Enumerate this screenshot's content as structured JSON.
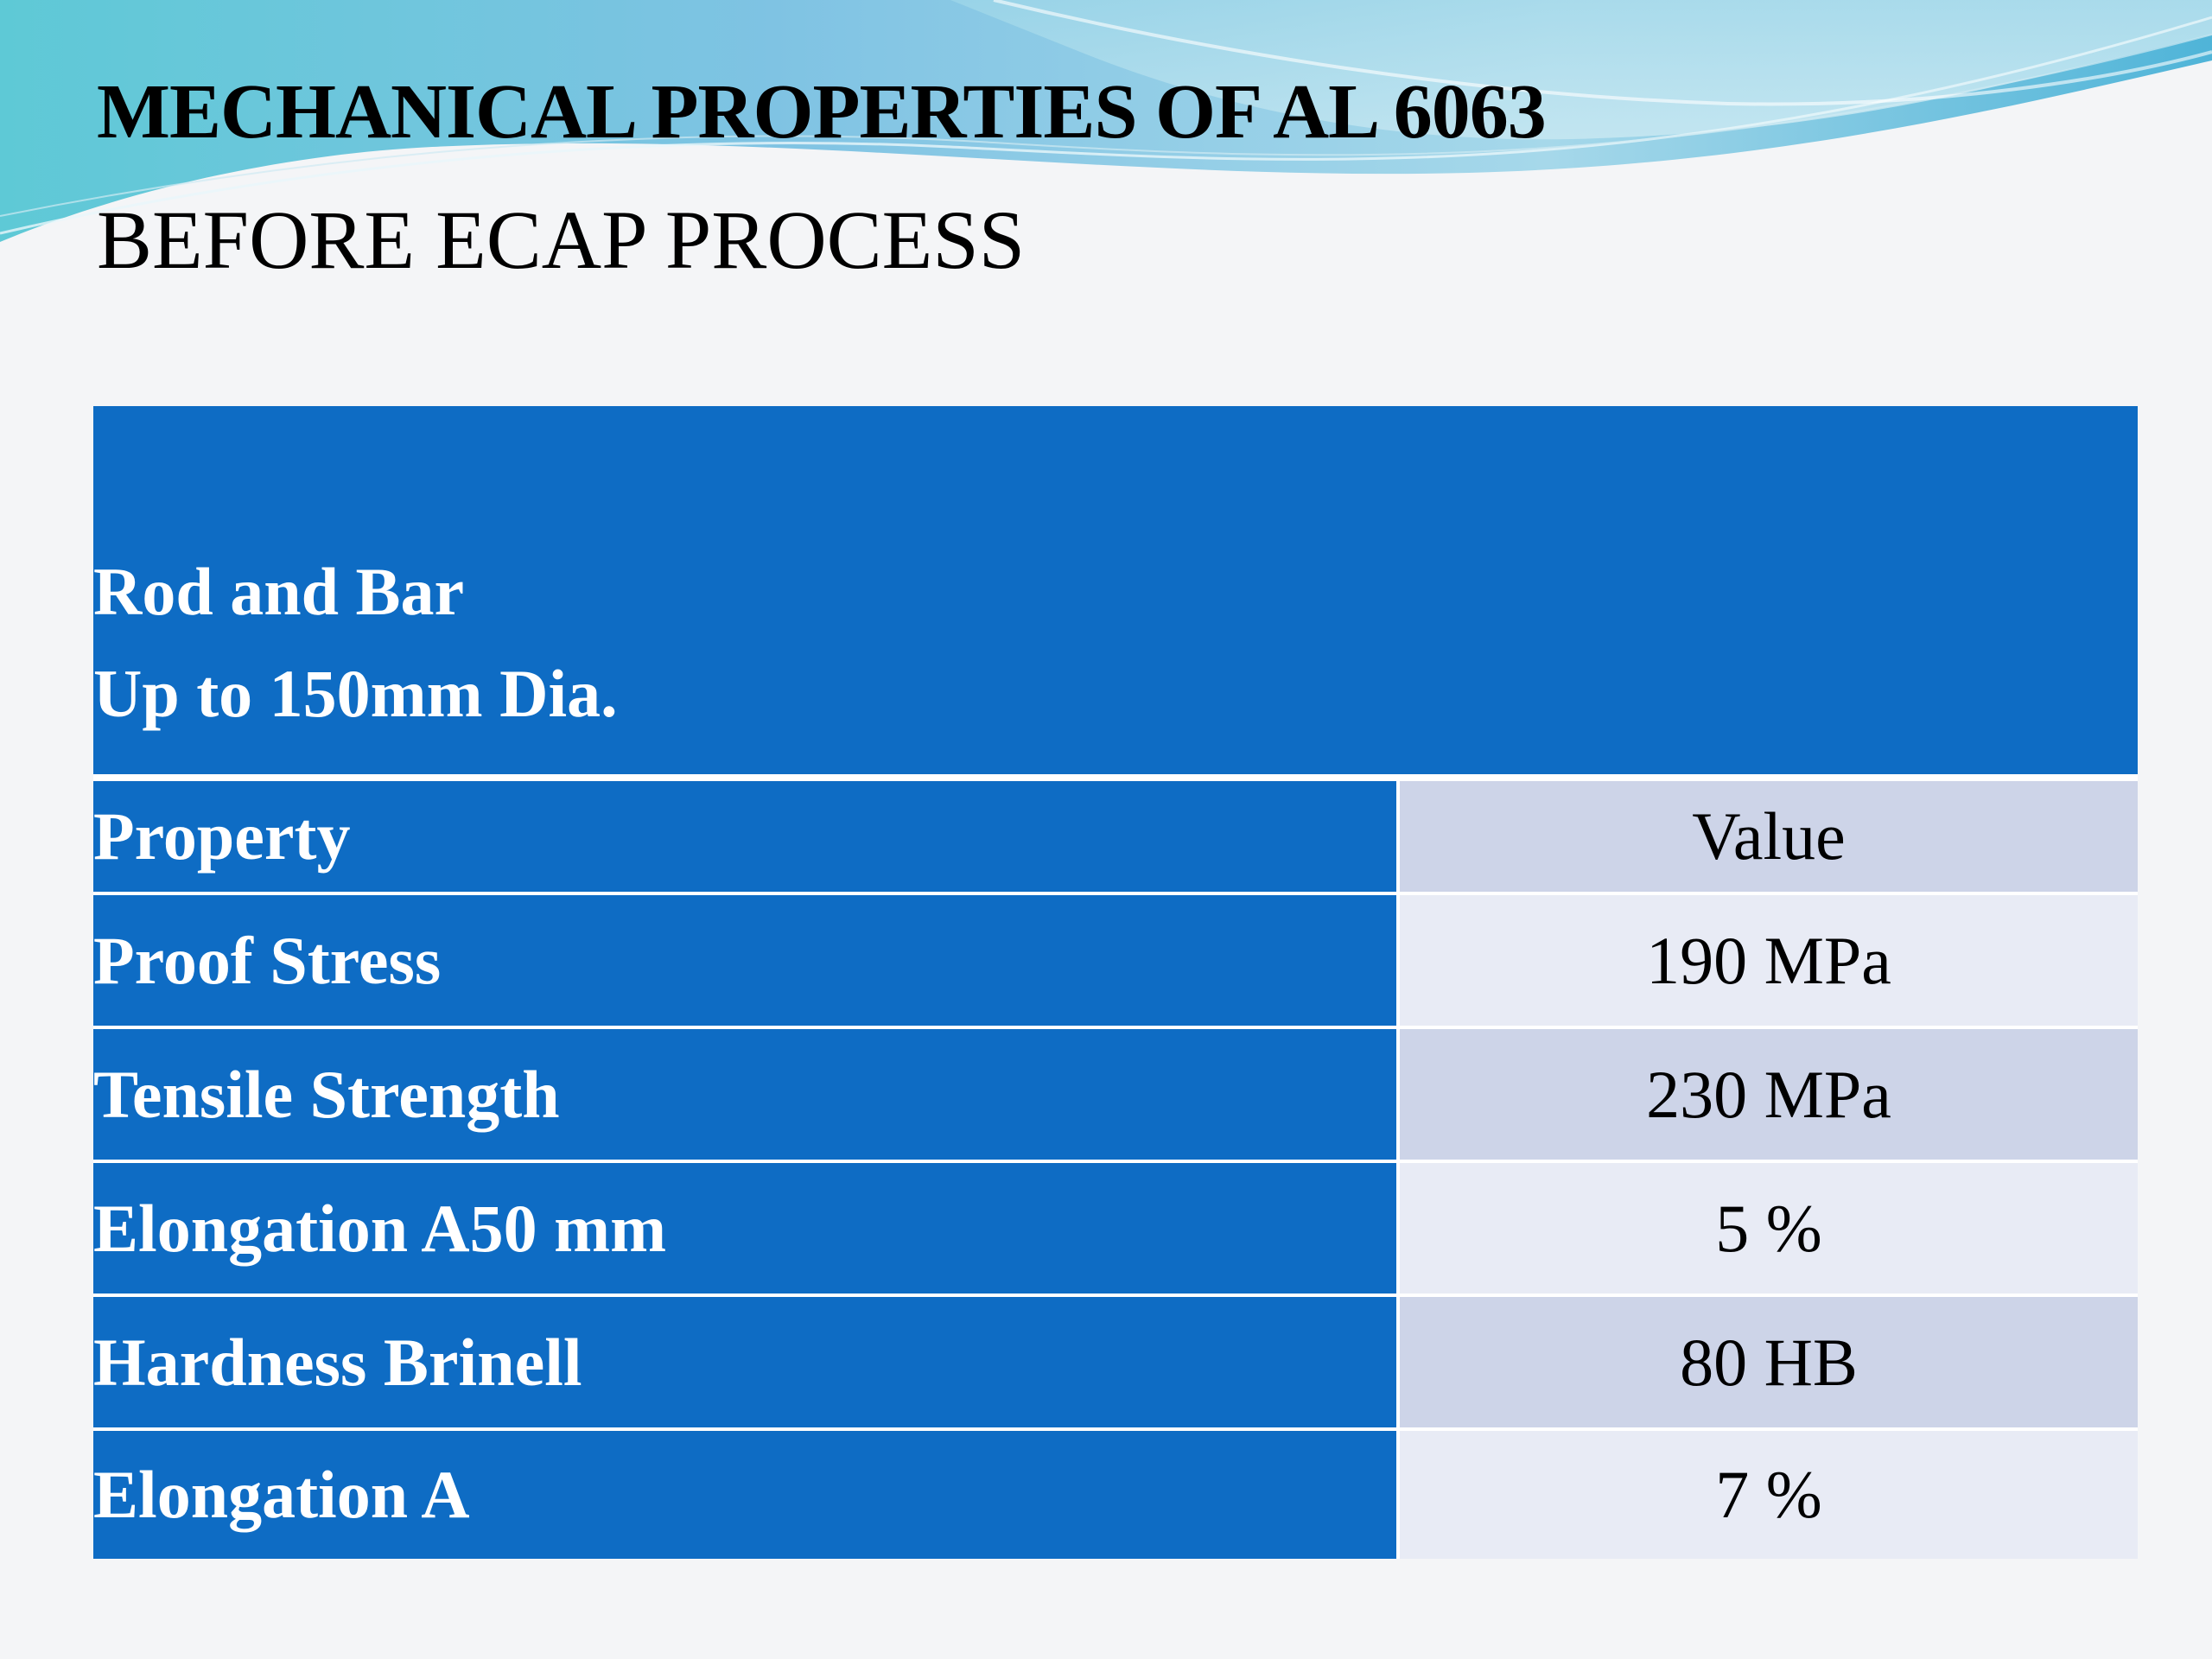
{
  "slide": {
    "title_bold": "MECHANICAL PROPERTIES OF AL 6063",
    "title_sub": "BEFORE ECAP PROCESS"
  },
  "table": {
    "header_line1": "Rod and Bar",
    "header_line2": "Up to 150mm Dia.",
    "column_property": "Property",
    "column_value": "Value",
    "rows": [
      {
        "property": "Proof Stress",
        "value": "190 MPa"
      },
      {
        "property": "Tensile Strength",
        "value": "230 MPa"
      },
      {
        "property": "Elongation A50 mm",
        "value": "5 %"
      },
      {
        "property": "Hardness Brinell",
        "value": "80 HB"
      },
      {
        "property": "Elongation A",
        "value": "7 %"
      }
    ]
  },
  "colors": {
    "header_blue": "#0e6cc4",
    "value_dark": "#cdd4e8",
    "value_light": "#e8ebf5"
  }
}
